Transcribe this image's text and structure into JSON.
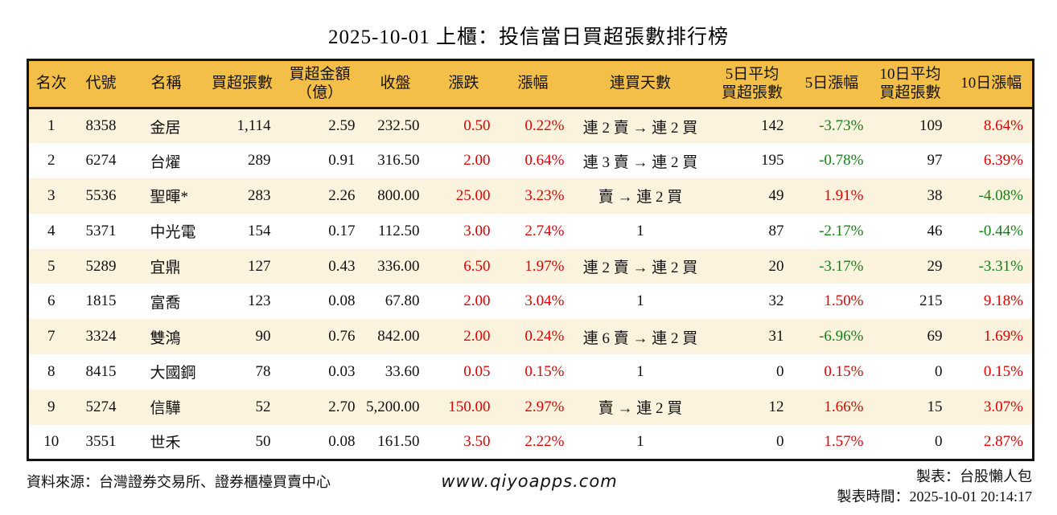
{
  "title": "2025-10-01 上櫃：投信當日買超張數排行榜",
  "colors": {
    "header_bg": "#F3BF48",
    "stripe_bg": "#FBF3DE",
    "up_red": "#E00000",
    "down_green": "#168016",
    "border": "#151515"
  },
  "table": {
    "columns": [
      {
        "key": "rank",
        "label": "名次"
      },
      {
        "key": "code",
        "label": "代號"
      },
      {
        "key": "name",
        "label": "名稱"
      },
      {
        "key": "net_buy",
        "label": "買超張數"
      },
      {
        "key": "amount",
        "label": "買超金額",
        "label2": "（億）"
      },
      {
        "key": "close",
        "label": "收盤"
      },
      {
        "key": "change",
        "label": "漲跌"
      },
      {
        "key": "change_pct",
        "label": "漲幅"
      },
      {
        "key": "streak",
        "label": "連買天數"
      },
      {
        "key": "avg5",
        "label": "5日平均",
        "label2": "買超張數"
      },
      {
        "key": "pct5",
        "label": "5日漲幅"
      },
      {
        "key": "avg10",
        "label": "10日平均",
        "label2": "買超張數"
      },
      {
        "key": "pct10",
        "label": "10日漲幅"
      }
    ],
    "signed_columns": [
      "change",
      "change_pct",
      "pct5",
      "pct10"
    ],
    "rows": [
      {
        "rank": "1",
        "code": "8358",
        "name": "金居",
        "net_buy": "1,114",
        "amount": "2.59",
        "close": "232.50",
        "change": "0.50",
        "change_pct": "0.22%",
        "streak": "連 2 賣 → 連 2 買",
        "avg5": "142",
        "pct5": "-3.73%",
        "avg10": "109",
        "pct10": "8.64%"
      },
      {
        "rank": "2",
        "code": "6274",
        "name": "台燿",
        "net_buy": "289",
        "amount": "0.91",
        "close": "316.50",
        "change": "2.00",
        "change_pct": "0.64%",
        "streak": "連 3 賣 → 連 2 買",
        "avg5": "195",
        "pct5": "-0.78%",
        "avg10": "97",
        "pct10": "6.39%"
      },
      {
        "rank": "3",
        "code": "5536",
        "name": "聖暉*",
        "net_buy": "283",
        "amount": "2.26",
        "close": "800.00",
        "change": "25.00",
        "change_pct": "3.23%",
        "streak": "賣 → 連 2 買",
        "avg5": "49",
        "pct5": "1.91%",
        "avg10": "38",
        "pct10": "-4.08%"
      },
      {
        "rank": "4",
        "code": "5371",
        "name": "中光電",
        "net_buy": "154",
        "amount": "0.17",
        "close": "112.50",
        "change": "3.00",
        "change_pct": "2.74%",
        "streak": "1",
        "avg5": "87",
        "pct5": "-2.17%",
        "avg10": "46",
        "pct10": "-0.44%"
      },
      {
        "rank": "5",
        "code": "5289",
        "name": "宜鼎",
        "net_buy": "127",
        "amount": "0.43",
        "close": "336.00",
        "change": "6.50",
        "change_pct": "1.97%",
        "streak": "連 2 賣 → 連 2 買",
        "avg5": "20",
        "pct5": "-3.17%",
        "avg10": "29",
        "pct10": "-3.31%"
      },
      {
        "rank": "6",
        "code": "1815",
        "name": "富喬",
        "net_buy": "123",
        "amount": "0.08",
        "close": "67.80",
        "change": "2.00",
        "change_pct": "3.04%",
        "streak": "1",
        "avg5": "32",
        "pct5": "1.50%",
        "avg10": "215",
        "pct10": "9.18%"
      },
      {
        "rank": "7",
        "code": "3324",
        "name": "雙鴻",
        "net_buy": "90",
        "amount": "0.76",
        "close": "842.00",
        "change": "2.00",
        "change_pct": "0.24%",
        "streak": "連 6 賣 → 連 2 買",
        "avg5": "31",
        "pct5": "-6.96%",
        "avg10": "69",
        "pct10": "1.69%"
      },
      {
        "rank": "8",
        "code": "8415",
        "name": "大國鋼",
        "net_buy": "78",
        "amount": "0.03",
        "close": "33.60",
        "change": "0.05",
        "change_pct": "0.15%",
        "streak": "1",
        "avg5": "0",
        "pct5": "0.15%",
        "avg10": "0",
        "pct10": "0.15%"
      },
      {
        "rank": "9",
        "code": "5274",
        "name": "信驊",
        "net_buy": "52",
        "amount": "2.70",
        "close": "5,200.00",
        "change": "150.00",
        "change_pct": "2.97%",
        "streak": "賣 → 連 2 買",
        "avg5": "12",
        "pct5": "1.66%",
        "avg10": "15",
        "pct10": "3.07%"
      },
      {
        "rank": "10",
        "code": "3551",
        "name": "世禾",
        "net_buy": "50",
        "amount": "0.08",
        "close": "161.50",
        "change": "3.50",
        "change_pct": "2.22%",
        "streak": "1",
        "avg5": "0",
        "pct5": "1.57%",
        "avg10": "0",
        "pct10": "2.87%"
      }
    ]
  },
  "footer": {
    "source": "資料來源：台灣證券交易所、證券櫃檯買賣中心",
    "website": "www.qiyoapps.com",
    "maker": "製表：台股懶人包",
    "time": "製表時間：2025-10-01 20:14:17"
  }
}
